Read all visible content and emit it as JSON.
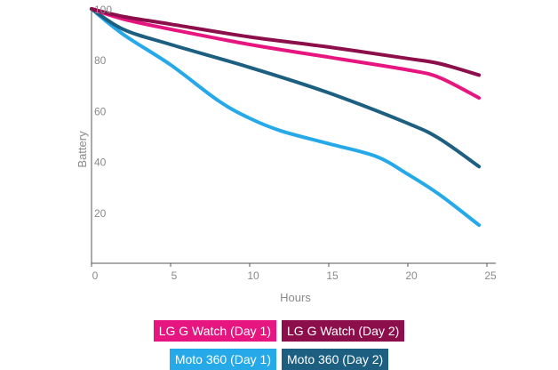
{
  "chart_data": {
    "type": "line",
    "title": "",
    "xlabel": "Hours",
    "ylabel": "Battery",
    "xlim": [
      0,
      25
    ],
    "ylim": [
      0,
      100
    ],
    "xticks": [
      "0",
      "5",
      "10",
      "15",
      "20",
      "25"
    ],
    "yticks": [
      "20",
      "40",
      "60",
      "80",
      "100"
    ],
    "grid": false,
    "legend_position": "bottom",
    "series": [
      {
        "name": "LG G Watch (Day 1)",
        "color": "#e6157f",
        "x": [
          0,
          2,
          5,
          10,
          15,
          20,
          22,
          24.5
        ],
        "y": [
          100,
          96,
          92,
          86,
          81,
          76,
          73,
          65
        ]
      },
      {
        "name": "LG G Watch (Day 2)",
        "color": "#8c0f4b",
        "x": [
          0,
          2,
          5,
          10,
          15,
          20,
          22,
          24.5
        ],
        "y": [
          100,
          97,
          94,
          89,
          85,
          80.5,
          78.5,
          74
        ]
      },
      {
        "name": "Moto 360 (Day 1)",
        "color": "#26a9e8",
        "x": [
          0,
          2,
          5,
          8,
          10,
          12,
          15,
          18,
          20,
          22,
          24.5
        ],
        "y": [
          100,
          90,
          78,
          64,
          57,
          52,
          47,
          42,
          35,
          27,
          15
        ]
      },
      {
        "name": "Moto 360 (Day 2)",
        "color": "#1c5f80",
        "x": [
          0,
          2,
          5,
          10,
          15,
          20,
          22,
          24.5
        ],
        "y": [
          100,
          92,
          86,
          77,
          67,
          55,
          49,
          38
        ]
      }
    ]
  }
}
